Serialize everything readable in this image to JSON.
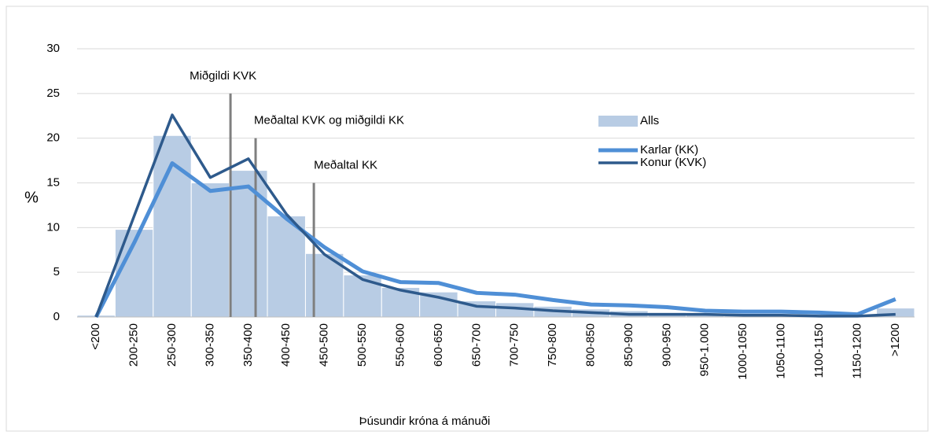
{
  "chart_data": {
    "type": "bar",
    "x_label": "Þúsundir króna á mánuði",
    "y_label": "%",
    "categories": [
      "<200",
      "200-250",
      "250-300",
      "300-350",
      "350-400",
      "400-450",
      "450-500",
      "500-550",
      "550-600",
      "600-650",
      "650-700",
      "700-750",
      "750-800",
      "800-850",
      "850-900",
      "900-950",
      "950-1.000",
      "1000-1050",
      "1050-1100",
      "1100-1150",
      "1150-1200",
      ">1200"
    ],
    "series": [
      {
        "name": "Alls",
        "type": "bar",
        "color": "#b8cce4",
        "values": [
          0.2,
          9.8,
          20.3,
          15.0,
          16.4,
          11.3,
          7.1,
          4.7,
          3.3,
          2.8,
          1.8,
          1.6,
          1.2,
          0.9,
          0.7,
          0.5,
          0.4,
          0.3,
          0.3,
          0.2,
          0.2,
          1.0
        ]
      },
      {
        "name": "Karlar (KK)",
        "type": "line",
        "color": "#4f8fd6",
        "values": [
          0,
          8.3,
          17.2,
          14.1,
          14.6,
          11.0,
          7.8,
          5.1,
          3.9,
          3.8,
          2.7,
          2.5,
          1.9,
          1.4,
          1.3,
          1.1,
          0.7,
          0.6,
          0.6,
          0.5,
          0.3,
          2.0
        ]
      },
      {
        "name": "Konur (KVK)",
        "type": "line",
        "color": "#2e5a8c",
        "values": [
          0,
          11.3,
          22.6,
          15.6,
          17.7,
          11.5,
          7.0,
          4.2,
          3.0,
          2.2,
          1.2,
          1.0,
          0.7,
          0.5,
          0.3,
          0.3,
          0.3,
          0.2,
          0.2,
          0.1,
          0.1,
          0.3
        ]
      }
    ],
    "annotations": [
      {
        "text": "Miðgildi KVK",
        "x": 3.53,
        "y": 25
      },
      {
        "text": "Meðaltal KVK og miðgildi KK",
        "x": 4.19,
        "y": 20
      },
      {
        "text": "Meðaltal KK",
        "x": 5.72,
        "y": 15
      }
    ],
    "ylim": [
      0,
      30
    ],
    "yticks": [
      0,
      5,
      10,
      15,
      20,
      25,
      30
    ],
    "grid": true,
    "legend": "right"
  }
}
